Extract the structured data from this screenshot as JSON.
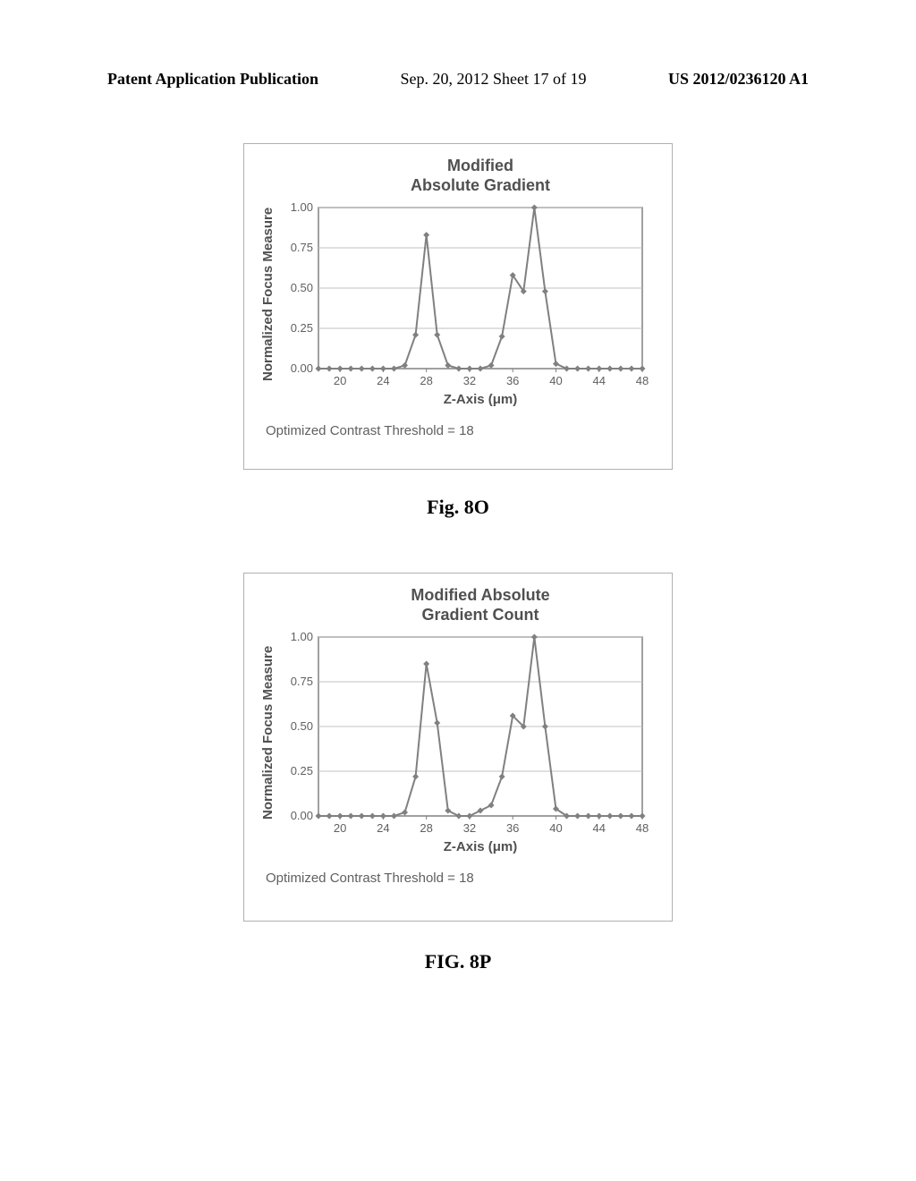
{
  "header": {
    "left": "Patent Application Publication",
    "center": "Sep. 20, 2012  Sheet 17 of 19",
    "right": "US 2012/0236120 A1"
  },
  "chart_top": {
    "title": "Modified\nAbsolute Gradient",
    "type": "line",
    "x_label": "Z-Axis (μm)",
    "y_label": "Normalized Focus Measure",
    "x_ticks": [
      20,
      24,
      28,
      32,
      36,
      40,
      44,
      48
    ],
    "y_ticks": [
      "0.00",
      "0.25",
      "0.50",
      "0.75",
      "1.00"
    ],
    "xlim": [
      18,
      48
    ],
    "ylim": [
      0.0,
      1.0
    ],
    "data": [
      [
        18,
        0.0
      ],
      [
        19,
        0.0
      ],
      [
        20,
        0.0
      ],
      [
        21,
        0.0
      ],
      [
        22,
        0.0
      ],
      [
        23,
        0.0
      ],
      [
        24,
        0.0
      ],
      [
        25,
        0.0
      ],
      [
        26,
        0.02
      ],
      [
        27,
        0.21
      ],
      [
        28,
        0.83
      ],
      [
        29,
        0.21
      ],
      [
        30,
        0.02
      ],
      [
        31,
        0.0
      ],
      [
        32,
        0.0
      ],
      [
        33,
        0.0
      ],
      [
        34,
        0.02
      ],
      [
        35,
        0.2
      ],
      [
        36,
        0.58
      ],
      [
        37,
        0.48
      ],
      [
        38,
        1.0
      ],
      [
        39,
        0.48
      ],
      [
        40,
        0.03
      ],
      [
        41,
        0.0
      ],
      [
        42,
        0.0
      ],
      [
        43,
        0.0
      ],
      [
        44,
        0.0
      ],
      [
        45,
        0.0
      ],
      [
        46,
        0.0
      ],
      [
        47,
        0.0
      ],
      [
        48,
        0.0
      ]
    ],
    "line_color": "#808080",
    "marker_color": "#808080",
    "marker_size": 3.5,
    "grid_color": "#c0c0c0",
    "plot_border_color": "#808080",
    "threshold_text": "Optimized Contrast Threshold = 18"
  },
  "chart_bottom": {
    "title": "Modified Absolute\nGradient Count",
    "type": "line",
    "x_label": "Z-Axis (μm)",
    "y_label": "Normalized Focus Measure",
    "x_ticks": [
      20,
      24,
      28,
      32,
      36,
      40,
      44,
      48
    ],
    "y_ticks": [
      "0.00",
      "0.25",
      "0.50",
      "0.75",
      "1.00"
    ],
    "xlim": [
      18,
      48
    ],
    "ylim": [
      0.0,
      1.0
    ],
    "data": [
      [
        18,
        0.0
      ],
      [
        19,
        0.0
      ],
      [
        20,
        0.0
      ],
      [
        21,
        0.0
      ],
      [
        22,
        0.0
      ],
      [
        23,
        0.0
      ],
      [
        24,
        0.0
      ],
      [
        25,
        0.0
      ],
      [
        26,
        0.02
      ],
      [
        27,
        0.22
      ],
      [
        28,
        0.85
      ],
      [
        29,
        0.52
      ],
      [
        30,
        0.03
      ],
      [
        31,
        0.0
      ],
      [
        32,
        0.0
      ],
      [
        33,
        0.03
      ],
      [
        34,
        0.06
      ],
      [
        35,
        0.22
      ],
      [
        36,
        0.56
      ],
      [
        37,
        0.5
      ],
      [
        38,
        1.0
      ],
      [
        39,
        0.5
      ],
      [
        40,
        0.04
      ],
      [
        41,
        0.0
      ],
      [
        42,
        0.0
      ],
      [
        43,
        0.0
      ],
      [
        44,
        0.0
      ],
      [
        45,
        0.0
      ],
      [
        46,
        0.0
      ],
      [
        47,
        0.0
      ],
      [
        48,
        0.0
      ]
    ],
    "line_color": "#808080",
    "marker_color": "#808080",
    "marker_size": 3.5,
    "grid_color": "#c0c0c0",
    "plot_border_color": "#808080",
    "threshold_text": "Optimized Contrast Threshold = 18"
  },
  "fig_top_caption": "Fig. 8O",
  "fig_bottom_caption": "FIG. 8P"
}
